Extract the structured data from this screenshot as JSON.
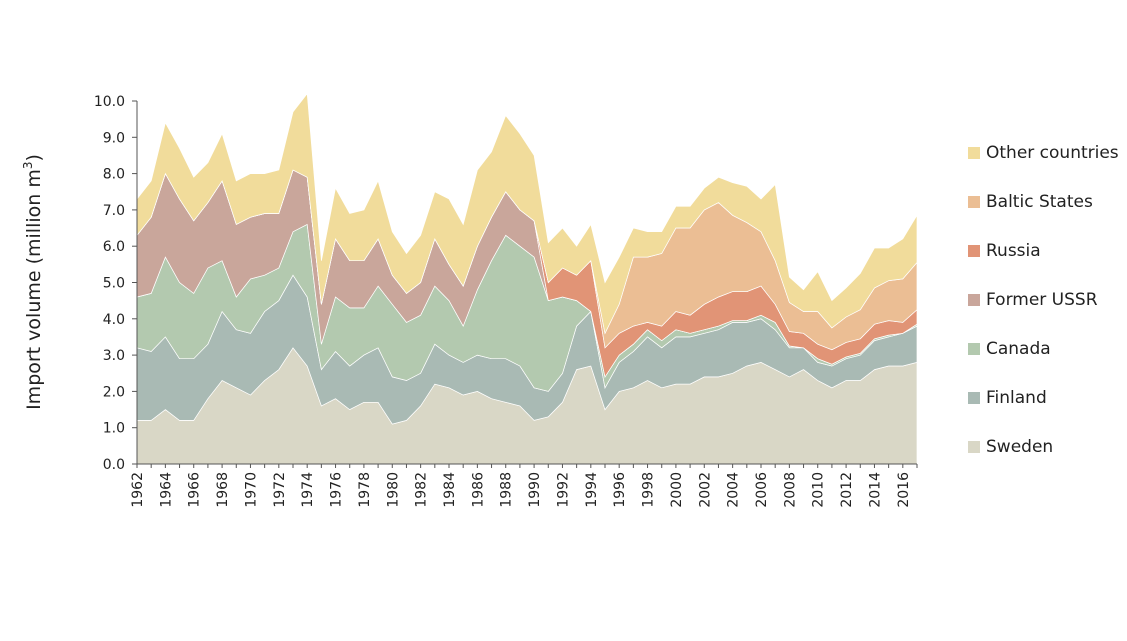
{
  "chart_data": {
    "type": "area",
    "stacked": true,
    "title": "",
    "ylabel": "Import volume (million m",
    "ylabel_sup": "3",
    "ylabel_suffix": ")",
    "ylim": [
      0,
      10
    ],
    "y_ticks": [
      "0.0",
      "1.0",
      "2.0",
      "3.0",
      "4.0",
      "5.0",
      "6.0",
      "7.0",
      "8.0",
      "9.0",
      "10.0"
    ],
    "x_ticks": [
      "1962",
      "1964",
      "1966",
      "1968",
      "1970",
      "1972",
      "1974",
      "1976",
      "1978",
      "1980",
      "1982",
      "1984",
      "1986",
      "1988",
      "1990",
      "1992",
      "1994",
      "1996",
      "1998",
      "2000",
      "2002",
      "2004",
      "2006",
      "2008",
      "2010",
      "2012",
      "2014",
      "2016"
    ],
    "x": [
      1962,
      1963,
      1964,
      1965,
      1966,
      1967,
      1968,
      1969,
      1970,
      1971,
      1972,
      1973,
      1974,
      1975,
      1976,
      1977,
      1978,
      1979,
      1980,
      1981,
      1982,
      1983,
      1984,
      1985,
      1986,
      1987,
      1988,
      1989,
      1990,
      1991,
      1992,
      1993,
      1994,
      1995,
      1996,
      1997,
      1998,
      1999,
      2000,
      2001,
      2002,
      2003,
      2004,
      2005,
      2006,
      2007,
      2008,
      2009,
      2010,
      2011,
      2012,
      2013,
      2014,
      2015,
      2016,
      2017
    ],
    "grid": false,
    "legend_position": "right",
    "series": [
      {
        "name": "Sweden",
        "color": "#d9d7c6",
        "values": [
          1.2,
          1.2,
          1.5,
          1.2,
          1.2,
          1.8,
          2.3,
          2.1,
          1.9,
          2.3,
          2.6,
          3.2,
          2.7,
          1.6,
          1.8,
          1.5,
          1.7,
          1.7,
          1.1,
          1.2,
          1.6,
          2.2,
          2.1,
          1.9,
          2.0,
          1.8,
          1.7,
          1.6,
          1.2,
          1.3,
          1.7,
          2.6,
          2.7,
          1.5,
          2.0,
          2.1,
          2.3,
          2.1,
          2.2,
          2.2,
          2.4,
          2.4,
          2.5,
          2.7,
          2.8,
          2.6,
          2.4,
          2.6,
          2.3,
          2.1,
          2.3,
          2.3,
          2.6,
          2.7,
          2.7,
          2.8
        ]
      },
      {
        "name": "Finland",
        "color": "#a9bab4",
        "values": [
          2.0,
          1.9,
          2.0,
          1.7,
          1.7,
          1.5,
          1.9,
          1.6,
          1.7,
          1.9,
          1.9,
          2.0,
          1.9,
          1.0,
          1.3,
          1.2,
          1.3,
          1.5,
          1.3,
          1.1,
          0.9,
          1.1,
          0.9,
          0.9,
          1.0,
          1.1,
          1.2,
          1.1,
          0.9,
          0.7,
          0.8,
          1.2,
          1.5,
          0.6,
          0.8,
          1.0,
          1.2,
          1.1,
          1.3,
          1.3,
          1.2,
          1.3,
          1.4,
          1.2,
          1.2,
          1.1,
          0.8,
          0.6,
          0.5,
          0.6,
          0.6,
          0.7,
          0.8,
          0.8,
          0.9,
          1.0
        ]
      },
      {
        "name": "Canada",
        "color": "#b3c9af",
        "values": [
          1.4,
          1.6,
          2.2,
          2.1,
          1.8,
          2.1,
          1.4,
          0.9,
          1.5,
          1.0,
          0.9,
          1.2,
          2.0,
          0.7,
          1.5,
          1.6,
          1.3,
          1.7,
          2.0,
          1.6,
          1.6,
          1.6,
          1.5,
          1.0,
          1.8,
          2.7,
          3.4,
          3.3,
          3.6,
          2.5,
          2.1,
          0.7,
          0.0,
          0.3,
          0.2,
          0.2,
          0.2,
          0.2,
          0.2,
          0.1,
          0.1,
          0.1,
          0.05,
          0.05,
          0.1,
          0.2,
          0.05,
          0.0,
          0.1,
          0.05,
          0.05,
          0.05,
          0.05,
          0.05,
          0.0,
          0.05
        ]
      },
      {
        "name": "Former USSR",
        "color": "#c9a69b",
        "values": [
          1.7,
          2.1,
          2.3,
          2.3,
          2.0,
          1.8,
          2.2,
          2.0,
          1.7,
          1.7,
          1.5,
          1.7,
          1.3,
          1.1,
          1.6,
          1.3,
          1.3,
          1.3,
          0.8,
          0.8,
          0.9,
          1.3,
          1.0,
          1.1,
          1.2,
          1.2,
          1.2,
          1.0,
          1.0,
          0.0,
          0.0,
          0.0,
          0.0,
          0.0,
          0.0,
          0.0,
          0.0,
          0.0,
          0.0,
          0.0,
          0.0,
          0.0,
          0.0,
          0.0,
          0.0,
          0.0,
          0.0,
          0.0,
          0.0,
          0.0,
          0.0,
          0.0,
          0.0,
          0.0,
          0.0,
          0.0
        ]
      },
      {
        "name": "Russia",
        "color": "#e19476",
        "values": [
          0,
          0,
          0,
          0,
          0,
          0,
          0,
          0,
          0,
          0,
          0,
          0,
          0,
          0,
          0,
          0,
          0,
          0,
          0,
          0,
          0,
          0,
          0,
          0,
          0,
          0,
          0,
          0,
          0,
          0.5,
          0.8,
          0.7,
          1.4,
          0.8,
          0.6,
          0.5,
          0.2,
          0.4,
          0.5,
          0.5,
          0.7,
          0.8,
          0.8,
          0.8,
          0.8,
          0.5,
          0.4,
          0.4,
          0.4,
          0.4,
          0.4,
          0.4,
          0.4,
          0.4,
          0.3,
          0.4
        ]
      },
      {
        "name": "Baltic States",
        "color": "#ebbe94",
        "values": [
          0,
          0,
          0,
          0,
          0,
          0,
          0,
          0,
          0,
          0,
          0,
          0,
          0,
          0,
          0,
          0,
          0,
          0,
          0,
          0,
          0,
          0,
          0,
          0,
          0,
          0,
          0,
          0,
          0,
          0,
          0,
          0,
          0,
          0.4,
          0.8,
          1.9,
          1.8,
          2.0,
          2.3,
          2.4,
          2.6,
          2.6,
          2.1,
          1.9,
          1.5,
          1.2,
          0.8,
          0.6,
          0.9,
          0.6,
          0.7,
          0.8,
          1.0,
          1.1,
          1.2,
          1.3
        ]
      },
      {
        "name": "Other countries",
        "color": "#f1dc9b",
        "values": [
          1.0,
          1.0,
          1.4,
          1.4,
          1.2,
          1.1,
          1.3,
          1.2,
          1.2,
          1.1,
          1.2,
          1.6,
          2.3,
          1.2,
          1.4,
          1.3,
          1.4,
          1.6,
          1.2,
          1.1,
          1.3,
          1.3,
          1.8,
          1.7,
          2.1,
          1.8,
          2.1,
          2.1,
          1.8,
          1.1,
          1.1,
          0.8,
          1.0,
          1.4,
          1.3,
          0.8,
          0.7,
          0.6,
          0.6,
          0.6,
          0.6,
          0.7,
          0.9,
          1.0,
          0.9,
          2.1,
          0.7,
          0.6,
          1.1,
          0.75,
          0.8,
          1.0,
          1.1,
          0.9,
          1.1,
          1.3
        ]
      }
    ]
  }
}
